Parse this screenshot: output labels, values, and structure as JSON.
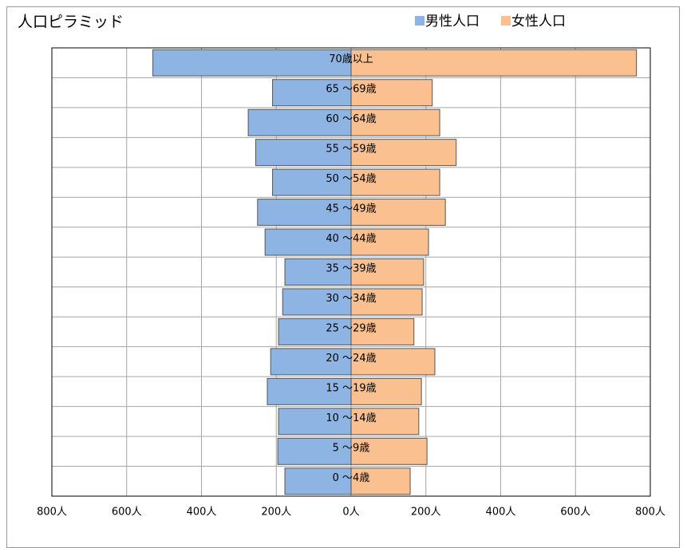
{
  "chart_data": {
    "type": "pyramid",
    "title": "人口ピラミッド",
    "categories": [
      "0 ～4歳",
      "5 ～9歳",
      "10 ～14歳",
      "15 ～19歳",
      "20 ～24歳",
      "25 ～29歳",
      "30 ～34歳",
      "35 ～39歳",
      "40 ～44歳",
      "45 ～49歳",
      "50 ～54歳",
      "55 ～59歳",
      "60 ～64歳",
      "65 ～69歳",
      "70歳以上"
    ],
    "series": [
      {
        "name": "男性人口",
        "color": "#8db4e2",
        "values": [
          177,
          196,
          194,
          224,
          215,
          194,
          183,
          177,
          230,
          250,
          210,
          255,
          275,
          210,
          530
        ]
      },
      {
        "name": "女性人口",
        "color": "#fac090",
        "values": [
          158,
          203,
          181,
          188,
          224,
          168,
          190,
          194,
          207,
          252,
          237,
          281,
          237,
          217,
          763
        ]
      }
    ],
    "xlim": [
      -800,
      800
    ],
    "xticks": [
      {
        "value": -800,
        "label": "800人"
      },
      {
        "value": -600,
        "label": "600人"
      },
      {
        "value": -400,
        "label": "400人"
      },
      {
        "value": -200,
        "label": "200人"
      },
      {
        "value": 0,
        "label": "0人"
      },
      {
        "value": 200,
        "label": "200人"
      },
      {
        "value": 400,
        "label": "400人"
      },
      {
        "value": 600,
        "label": "600人"
      },
      {
        "value": 800,
        "label": "800人"
      }
    ],
    "grid": true,
    "legend": "top-right"
  }
}
